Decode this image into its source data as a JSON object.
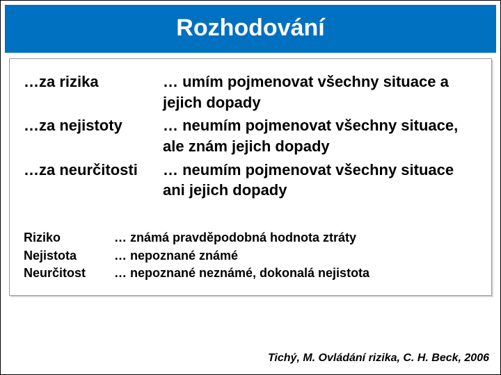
{
  "title": "Rozhodování",
  "main_rows": [
    {
      "term": "…za rizika",
      "desc": "… umím pojmenovat všechny situace a jejich dopady"
    },
    {
      "term": "…za nejistoty",
      "desc": "… neumím pojmenovat všechny situace, ale znám jejich dopady"
    },
    {
      "term": "…za neurčitosti",
      "desc": "… neumím pojmenovat všechny situace ani jejich dopady"
    }
  ],
  "sub_rows": [
    {
      "term": "Riziko",
      "desc": "… známá pravděpodobná hodnota ztráty"
    },
    {
      "term": "Nejistota",
      "desc": "… nepoznané známé"
    },
    {
      "term": "Neurčitost",
      "desc": "… nepoznané neznámé, dokonalá nejistota"
    }
  ],
  "citation": "Tichý, M. Ovládání rizika, C. H. Beck, 2006",
  "colors": {
    "title_bg": "#0070c0",
    "title_fg": "#ffffff",
    "text": "#000000",
    "bg": "#ffffff",
    "box_border": "#999999"
  },
  "typography": {
    "title_size_pt": 34,
    "main_size_pt": 22,
    "sub_size_pt": 18,
    "citation_size_pt": 16,
    "weight": "bold",
    "family": "Arial"
  }
}
